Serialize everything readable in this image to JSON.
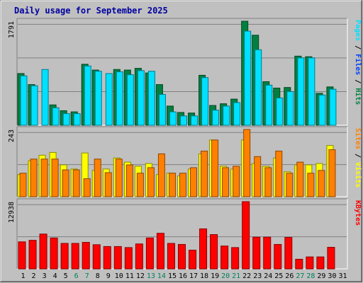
{
  "title": "Daily usage for September 2025",
  "colors": {
    "background": "#c0c0c0",
    "panel": "#c0c0c0",
    "hits": "#008040",
    "files": "#0040ff",
    "pages": "#00e0ff",
    "visits": "#ffff00",
    "sites": "#ff8000",
    "kbytes": "#ff0000",
    "title": "#0000a0",
    "weekend": "#00805c"
  },
  "chart_data": [
    {
      "type": "bar",
      "categories": [
        "1",
        "2",
        "3",
        "4",
        "5",
        "6",
        "7",
        "8",
        "9",
        "10",
        "11",
        "12",
        "13",
        "14",
        "15",
        "16",
        "17",
        "18",
        "19",
        "20",
        "21",
        "22",
        "23",
        "24",
        "25",
        "26",
        "27",
        "28",
        "29",
        "30",
        "31"
      ],
      "weekend_days": [
        "6",
        "7",
        "13",
        "14",
        "20",
        "21",
        "27",
        "28"
      ],
      "ylabel_max": "1791",
      "ylim": [
        0,
        1791
      ],
      "legend": [
        {
          "label": "Hits",
          "color": "#008040"
        },
        {
          "label": "Files",
          "color": "#0040ff"
        },
        {
          "label": "Pages",
          "color": "#00e0ff"
        }
      ],
      "series": [
        {
          "name": "Hits",
          "values": [
            890,
            700,
            0,
            350,
            250,
            230,
            1050,
            950,
            0,
            960,
            950,
            980,
            900,
            700,
            330,
            220,
            210,
            860,
            340,
            370,
            450,
            1791,
            1550,
            750,
            640,
            650,
            1190,
            1180,
            550,
            660,
            0
          ]
        },
        {
          "name": "Files",
          "values": [
            0,
            0,
            0,
            0,
            0,
            0,
            0,
            0,
            0,
            0,
            0,
            0,
            0,
            0,
            0,
            0,
            0,
            0,
            0,
            0,
            0,
            0,
            0,
            0,
            0,
            0,
            0,
            0,
            0,
            0,
            0
          ]
        },
        {
          "name": "Pages",
          "values": [
            850,
            680,
            960,
            300,
            200,
            200,
            1020,
            930,
            890,
            920,
            870,
            940,
            930,
            530,
            230,
            160,
            160,
            820,
            260,
            330,
            390,
            1620,
            1300,
            690,
            470,
            580,
            1160,
            1160,
            520,
            620,
            0
          ]
        }
      ]
    },
    {
      "type": "bar",
      "categories": [
        "1",
        "2",
        "3",
        "4",
        "5",
        "6",
        "7",
        "8",
        "9",
        "10",
        "11",
        "12",
        "13",
        "14",
        "15",
        "16",
        "17",
        "18",
        "19",
        "20",
        "21",
        "22",
        "23",
        "24",
        "25",
        "26",
        "27",
        "28",
        "29",
        "30",
        "31"
      ],
      "ylabel_max": "243",
      "ylim": [
        0,
        243
      ],
      "legend": [
        {
          "label": "Visits",
          "color": "#ffff00"
        },
        {
          "label": "Sites",
          "color": "#ff8000"
        }
      ],
      "series": [
        {
          "name": "Visits",
          "values": [
            80,
            130,
            150,
            160,
            115,
            100,
            158,
            95,
            100,
            140,
            125,
            110,
            120,
            80,
            85,
            75,
            100,
            155,
            205,
            110,
            100,
            205,
            120,
            110,
            140,
            90,
            115,
            115,
            120,
            185,
            0
          ]
        },
        {
          "name": "Sites",
          "values": [
            85,
            136,
            136,
            136,
            97,
            97,
            65,
            136,
            87,
            136,
            115,
            85,
            105,
            155,
            85,
            85,
            105,
            165,
            205,
            105,
            110,
            243,
            145,
            105,
            165,
            85,
            125,
            85,
            95,
            170,
            0
          ]
        }
      ]
    },
    {
      "type": "bar",
      "categories": [
        "1",
        "2",
        "3",
        "4",
        "5",
        "6",
        "7",
        "8",
        "9",
        "10",
        "11",
        "12",
        "13",
        "14",
        "15",
        "16",
        "17",
        "18",
        "19",
        "20",
        "21",
        "22",
        "23",
        "24",
        "25",
        "26",
        "27",
        "28",
        "29",
        "30",
        "31"
      ],
      "ylabel_max": "12938",
      "ylim": [
        0,
        12938
      ],
      "legend": [
        {
          "label": "KBytes",
          "color": "#ff0000"
        }
      ],
      "series": [
        {
          "name": "KBytes",
          "values": [
            5200,
            5500,
            6700,
            5950,
            4900,
            4900,
            5100,
            4650,
            4300,
            4300,
            4100,
            4800,
            5950,
            6850,
            4900,
            4700,
            3600,
            7700,
            6600,
            4400,
            4100,
            12938,
            6100,
            6100,
            4700,
            6050,
            1850,
            2300,
            2300,
            4150,
            0
          ]
        }
      ]
    }
  ]
}
